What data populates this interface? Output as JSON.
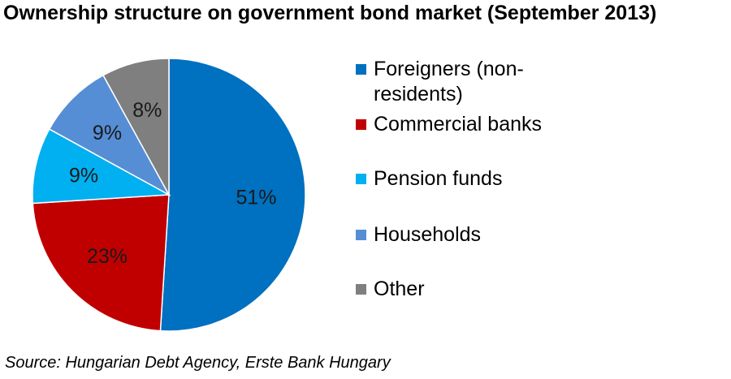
{
  "title": "Ownership structure on government bond market (September 2013)",
  "source": "Source: Hungarian Debt Agency, Erste Bank Hungary",
  "chart_data": {
    "type": "pie",
    "title": "Ownership structure on government bond market (September 2013)",
    "start": "12 o'clock, clockwise",
    "slices": [
      {
        "name": "Foreigners (non-residents)",
        "label": "51%",
        "value": 51,
        "color": "#0070c0"
      },
      {
        "name": "Commercial banks",
        "label": "23%",
        "value": 23,
        "color": "#c00000"
      },
      {
        "name": "Pension funds",
        "label": "9%",
        "value": 9,
        "color": "#00b0f0"
      },
      {
        "name": "Households",
        "label": "9%",
        "value": 9,
        "color": "#558ed5"
      },
      {
        "name": "Other",
        "label": "8%",
        "value": 8,
        "color": "#7f7f7f"
      }
    ],
    "legend": {
      "placement": "right",
      "entries": [
        "Foreigners (non-residents)",
        "Commercial banks",
        "Pension funds",
        "Households",
        "Other"
      ]
    }
  }
}
